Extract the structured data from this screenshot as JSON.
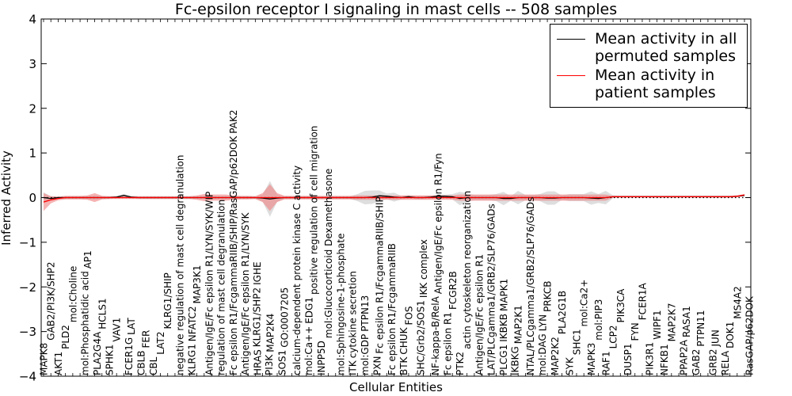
{
  "chart_data": {
    "type": "line",
    "title": "Fc-epsilon receptor I signaling in mast cells -- 508 samples",
    "xlabel": "Cellular Entities",
    "ylabel": "Inferred Activity",
    "ylim": [
      -4,
      4
    ],
    "yticks": [
      "−4",
      "−3",
      "−2",
      "−1",
      "0",
      "1",
      "2",
      "3",
      "4"
    ],
    "legend": {
      "placement": "top-left",
      "entries": [
        {
          "label": "Mean activity in all permuted samples",
          "color": "#000000"
        },
        {
          "label": "Mean activity in patient samples",
          "color": "#ff0000"
        }
      ]
    },
    "colors": {
      "permuted": "#000000",
      "patient": "#ff0000",
      "patient_band": "#f08080",
      "permuted_band": "#c8c8c8"
    },
    "categories": [
      "MAPK8",
      "GAB2/PI3K/SHP2",
      "AKT1",
      "PLD2",
      "mol:Choline",
      "mol:Phosphatidic acid",
      "AP1",
      "PLA2G4A",
      "HCLS1",
      "SPHK1",
      "VAV1",
      "FCER1G",
      "LAT",
      "CBLB",
      "FER",
      "CBL",
      "LAT2",
      "KLRG1/SHIP",
      "negative regulation of mast cell degranulation",
      "KLRG1",
      "NFATC2",
      "MAP3K1",
      "Antigen/IgE/Fc epsilon R1/LYN/SYK/WIP",
      "regulation of mast cell degranulation",
      "Fc epsilon R1/FcgammaRIIB/SHIP/RasGAP/p62DOK",
      "Antigen/IgE/Fc epsilon R1/LYN/SYK",
      "PAK2",
      "HRAS",
      "KLRG1/SHP2",
      "IGHE",
      "PI3K",
      "MAP2K4",
      "SOS1",
      "GO:0007205",
      "calcium-dependent protein kinase C activity",
      "mol:Ca++",
      "EDG1",
      "positive regulation of cell migration",
      "INPP5D",
      "mol:Glucocorticoid Dexamethasone",
      "mol:Sphingosine-1-phosphate",
      "ITK",
      "cytokine secretion",
      "mol:GDP",
      "PTPN13",
      "PXN",
      "Fc epsilon R1/FcgammaRIIB/SHIP",
      "Fc epsilon R1/FcgammaRIIB",
      "BTK",
      "CHUK",
      "FOS",
      "SHC/Grb2/SOS1",
      "IKK complex",
      "NF-kappa-B/RelA",
      "Antigen/IgE/Fc epsilon R1/Fyn",
      "Fc epsilon R1",
      "FCGR2B",
      "PTK2",
      "actin cytoskeleton reorganization",
      "Antigen/IgE/Fc epsilon R1",
      "LAT/PLCgamma1/GRB2/SLP76/GADs",
      "PLCG1",
      "IKBKB",
      "MAPK1",
      "IKBKG",
      "MAP2K1",
      "NTAL/PLCgamma1/GRB2/SLP76/GADs",
      "mol:DAG",
      "LYN",
      "PRKCB",
      "MAP2K2",
      "PLA2G1B",
      "SYK",
      "SHC1",
      "mol:Ca2+",
      "MAPK3",
      "mol:PIP3",
      "RAF1",
      "LCP2",
      "PIK3CA",
      "DUSP1",
      "FYN",
      "FCER1A",
      "PIK3R1",
      "WIPF1",
      "NFKB1",
      "MAP2K7",
      "PPAP2A",
      "RASA1",
      "GAB2",
      "PTPN11",
      "GRB2",
      "JUN",
      "RELA",
      "DOK1",
      "MS4A2",
      "RasGAP/p62DOK"
    ],
    "series": [
      {
        "name": "Mean activity in all permuted samples",
        "values": [
          0,
          -0.02,
          0,
          0,
          0,
          0,
          0,
          0,
          0,
          0,
          0.01,
          0.05,
          0.01,
          0,
          0,
          0,
          0,
          0,
          0,
          0,
          0,
          0,
          0,
          0,
          0,
          0,
          0,
          0,
          0,
          0,
          -0.01,
          -0.03,
          -0.01,
          0,
          0,
          0,
          0,
          0,
          0,
          0,
          0,
          0,
          0,
          0,
          0,
          0.01,
          0.04,
          0.03,
          0.01,
          0,
          0.02,
          0,
          0,
          0.01,
          0.03,
          0.03,
          0.02,
          -0.02,
          0,
          0,
          0,
          0,
          0,
          -0.02,
          -0.02,
          0,
          0,
          0,
          0,
          -0.01,
          -0.01,
          0,
          0,
          0,
          0,
          -0.01,
          -0.02,
          0,
          0.02,
          0.02,
          0.02,
          0.02,
          0.02,
          0.02,
          0.02,
          0.02,
          0.02,
          0.02,
          0.02,
          0.02,
          0.02,
          0.02,
          0.02,
          0.02,
          0.02,
          0.03,
          0.05
        ],
        "spread": [
          0.12,
          0.05,
          0.03,
          0.03,
          0.03,
          0.03,
          0.03,
          0.05,
          0.03,
          0.03,
          0.03,
          0.03,
          0.03,
          0.03,
          0.03,
          0.03,
          0.03,
          0.03,
          0.03,
          0.03,
          0.03,
          0.03,
          0.03,
          0.03,
          0.03,
          0.03,
          0.03,
          0.03,
          0.03,
          0.03,
          0.08,
          0.4,
          0.08,
          0.03,
          0.03,
          0.03,
          0.03,
          0.03,
          0.03,
          0.03,
          0.03,
          0.03,
          0.03,
          0.08,
          0.15,
          0.15,
          0.12,
          0.06,
          0.1,
          0.04,
          0.04,
          0.04,
          0.04,
          0.04,
          0.04,
          0.04,
          0.06,
          0.15,
          0.1,
          0.06,
          0.06,
          0.06,
          0.08,
          0.15,
          0.05,
          0.15,
          0.06,
          0.06,
          0.08,
          0.15,
          0.15,
          0.05,
          0.08,
          0.08,
          0.08,
          0.15,
          0.1,
          0.15,
          0.03,
          0.02,
          0.02,
          0.02,
          0.02,
          0.02,
          0.02,
          0.02,
          0.02,
          0.02,
          0.02,
          0.02,
          0.02,
          0.02,
          0.02,
          0.02,
          0.02,
          0.02,
          0.02
        ]
      },
      {
        "name": "Mean activity in patient samples",
        "values": [
          -0.1,
          -0.05,
          -0.02,
          0,
          0,
          0,
          0,
          0,
          0,
          0,
          0,
          0,
          0,
          0,
          0,
          0,
          0,
          0,
          0,
          0,
          0,
          0,
          0,
          0,
          0,
          0,
          0,
          0,
          0,
          0,
          0,
          0,
          0,
          0,
          0,
          0,
          0,
          0,
          0,
          0,
          0,
          0,
          0,
          0,
          0,
          0,
          0,
          0,
          0,
          0,
          0,
          0,
          0,
          0,
          0,
          0,
          0,
          0,
          0,
          0,
          0,
          0,
          0,
          0,
          0,
          0,
          0,
          0,
          0,
          0,
          0,
          0,
          0,
          0,
          0,
          0,
          0,
          0,
          0.02,
          0.02,
          0.02,
          0.02,
          0.02,
          0.02,
          0.02,
          0.02,
          0.02,
          0.02,
          0.02,
          0.02,
          0.02,
          0.02,
          0.02,
          0.02,
          0.02,
          0.03,
          0.06
        ],
        "spread": [
          0.2,
          0.08,
          0.04,
          0.04,
          0.04,
          0.04,
          0.05,
          0.1,
          0.04,
          0.03,
          0.03,
          0.03,
          0.03,
          0.03,
          0.03,
          0.03,
          0.03,
          0.03,
          0.03,
          0.03,
          0.03,
          0.05,
          0.08,
          0.07,
          0.07,
          0.07,
          0.05,
          0.04,
          0.04,
          0.03,
          0.1,
          0.3,
          0.1,
          0.04,
          0.04,
          0.04,
          0.04,
          0.04,
          0.04,
          0.04,
          0.04,
          0.04,
          0.04,
          0.05,
          0.05,
          0.05,
          0.05,
          0.05,
          0.05,
          0.05,
          0.05,
          0.05,
          0.05,
          0.05,
          0.05,
          0.05,
          0.05,
          0.07,
          0.07,
          0.07,
          0.07,
          0.07,
          0.07,
          0.07,
          0.07,
          0.07,
          0.07,
          0.07,
          0.07,
          0.07,
          0.07,
          0.07,
          0.07,
          0.07,
          0.07,
          0.07,
          0.07,
          0.07,
          0.02,
          0.02,
          0.02,
          0.02,
          0.02,
          0.02,
          0.02,
          0.02,
          0.02,
          0.02,
          0.02,
          0.02,
          0.02,
          0.02,
          0.02,
          0.02,
          0.02,
          0.02,
          0.02
        ]
      }
    ]
  }
}
